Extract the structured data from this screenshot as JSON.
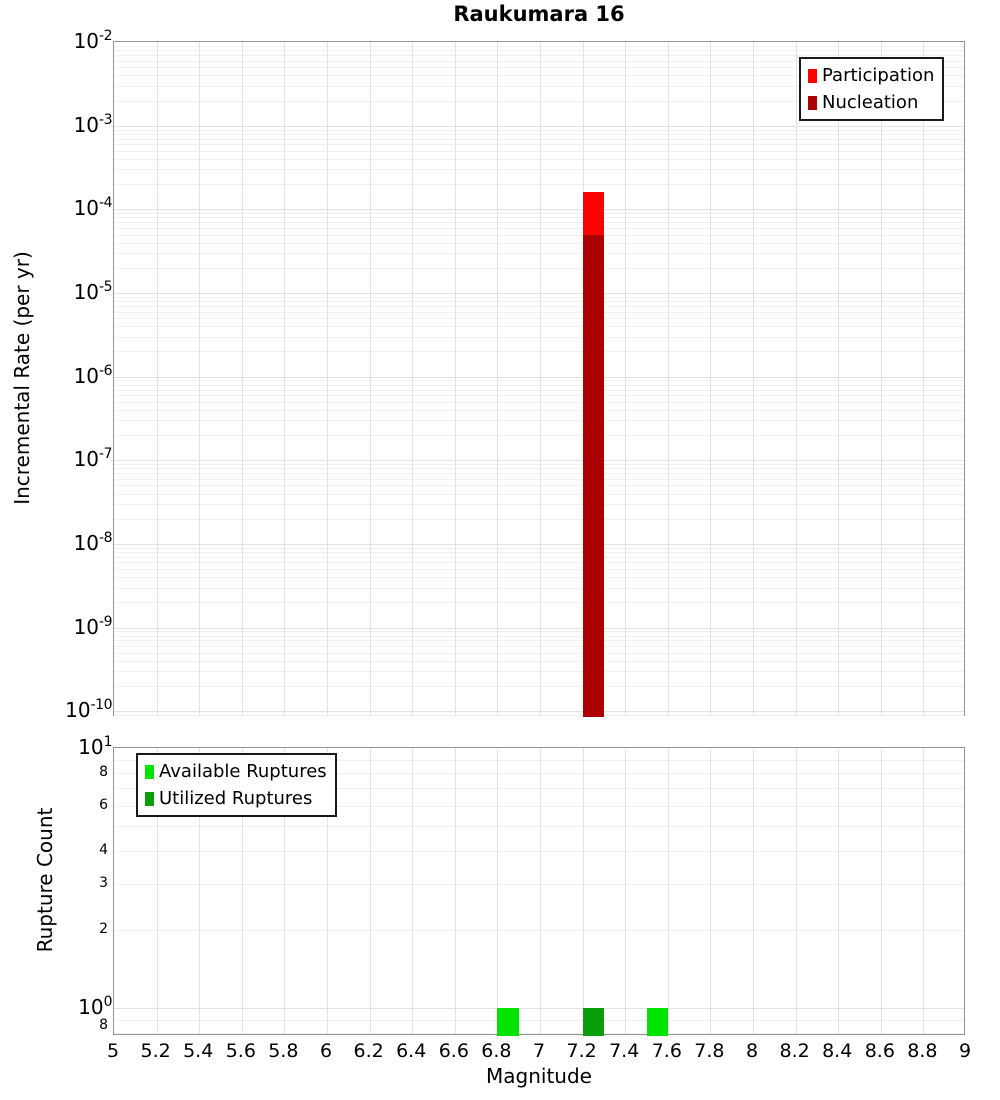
{
  "title": "Raukumara 16",
  "x_axis": {
    "label": "Magnitude",
    "range": [
      5,
      9
    ],
    "grid_step": 0.2,
    "ticks": [
      {
        "label": "5",
        "value": 5
      },
      {
        "label": "5.2",
        "value": 5.2
      },
      {
        "label": "5.4",
        "value": 5.4
      },
      {
        "label": "5.6",
        "value": 5.6
      },
      {
        "label": "5.8",
        "value": 5.8
      },
      {
        "label": "6",
        "value": 6
      },
      {
        "label": "6.2",
        "value": 6.2
      },
      {
        "label": "6.4",
        "value": 6.4
      },
      {
        "label": "6.6",
        "value": 6.6
      },
      {
        "label": "6.8",
        "value": 6.8
      },
      {
        "label": "7",
        "value": 7
      },
      {
        "label": "7.2",
        "value": 7.2
      },
      {
        "label": "7.4",
        "value": 7.4
      },
      {
        "label": "7.6",
        "value": 7.6
      },
      {
        "label": "7.8",
        "value": 7.8
      },
      {
        "label": "8",
        "value": 8
      },
      {
        "label": "8.2",
        "value": 8.2
      },
      {
        "label": "8.4",
        "value": 8.4
      },
      {
        "label": "8.6",
        "value": 8.6
      },
      {
        "label": "8.8",
        "value": 8.8
      },
      {
        "label": "9",
        "value": 9
      }
    ]
  },
  "chart_data": [
    {
      "type": "bar",
      "panel": "top",
      "title": "Raukumara 16",
      "xlabel": "Magnitude",
      "ylabel": "Incremental Rate (per yr)",
      "y_scale": "log",
      "y_range": [
        8.5e-11,
        0.01
      ],
      "x_range": [
        5,
        9
      ],
      "grid": true,
      "show_x_tick_labels": false,
      "bar_width": 0.1,
      "legend_position": "top-right",
      "y_ticks": [
        {
          "exp": "-2",
          "value": 0.01
        },
        {
          "exp": "-3",
          "value": 0.001
        },
        {
          "exp": "-4",
          "value": 0.0001
        },
        {
          "exp": "-5",
          "value": 1e-05
        },
        {
          "exp": "-6",
          "value": 1e-06
        },
        {
          "exp": "-7",
          "value": 1e-07
        },
        {
          "exp": "-8",
          "value": 1e-08
        },
        {
          "exp": "-9",
          "value": 1e-09
        },
        {
          "exp": "-10",
          "value": 1e-10
        }
      ],
      "series": [
        {
          "name": "Participation",
          "color": "#ff0000",
          "bars": [
            {
              "x": 7.25,
              "y": 0.00016,
              "extends_to_axis_bottom": true
            }
          ]
        },
        {
          "name": "Nucleation",
          "color": "#aa0000",
          "bars": [
            {
              "x": 7.25,
              "y": 5e-05,
              "extends_to_axis_bottom": true
            }
          ]
        }
      ]
    },
    {
      "type": "bar",
      "panel": "bottom",
      "xlabel": "Magnitude",
      "ylabel": "Rupture Count",
      "y_scale": "log",
      "y_range": [
        0.78,
        10
      ],
      "x_range": [
        5,
        9
      ],
      "grid": true,
      "show_x_tick_labels": true,
      "bar_width": 0.1,
      "legend_position": "top-left",
      "y_ticks": [
        {
          "exp": "1",
          "value": 10
        },
        {
          "exp": "0",
          "value": 1
        }
      ],
      "y_minor_tick_labels": [
        {
          "label": "8",
          "value": 8
        },
        {
          "label": "6",
          "value": 6
        },
        {
          "label": "4",
          "value": 4
        },
        {
          "label": "3",
          "value": 3
        },
        {
          "label": "2",
          "value": 2
        },
        {
          "label": "8",
          "value": 0.8
        }
      ],
      "series": [
        {
          "name": "Available Ruptures",
          "color": "#00e400",
          "bars": [
            {
              "x": 6.85,
              "y": 1
            },
            {
              "x": 7.55,
              "y": 1
            }
          ]
        },
        {
          "name": "Utilized Ruptures",
          "color": "#0a9e0a",
          "bars": [
            {
              "x": 7.25,
              "y": 1
            }
          ]
        }
      ]
    }
  ]
}
